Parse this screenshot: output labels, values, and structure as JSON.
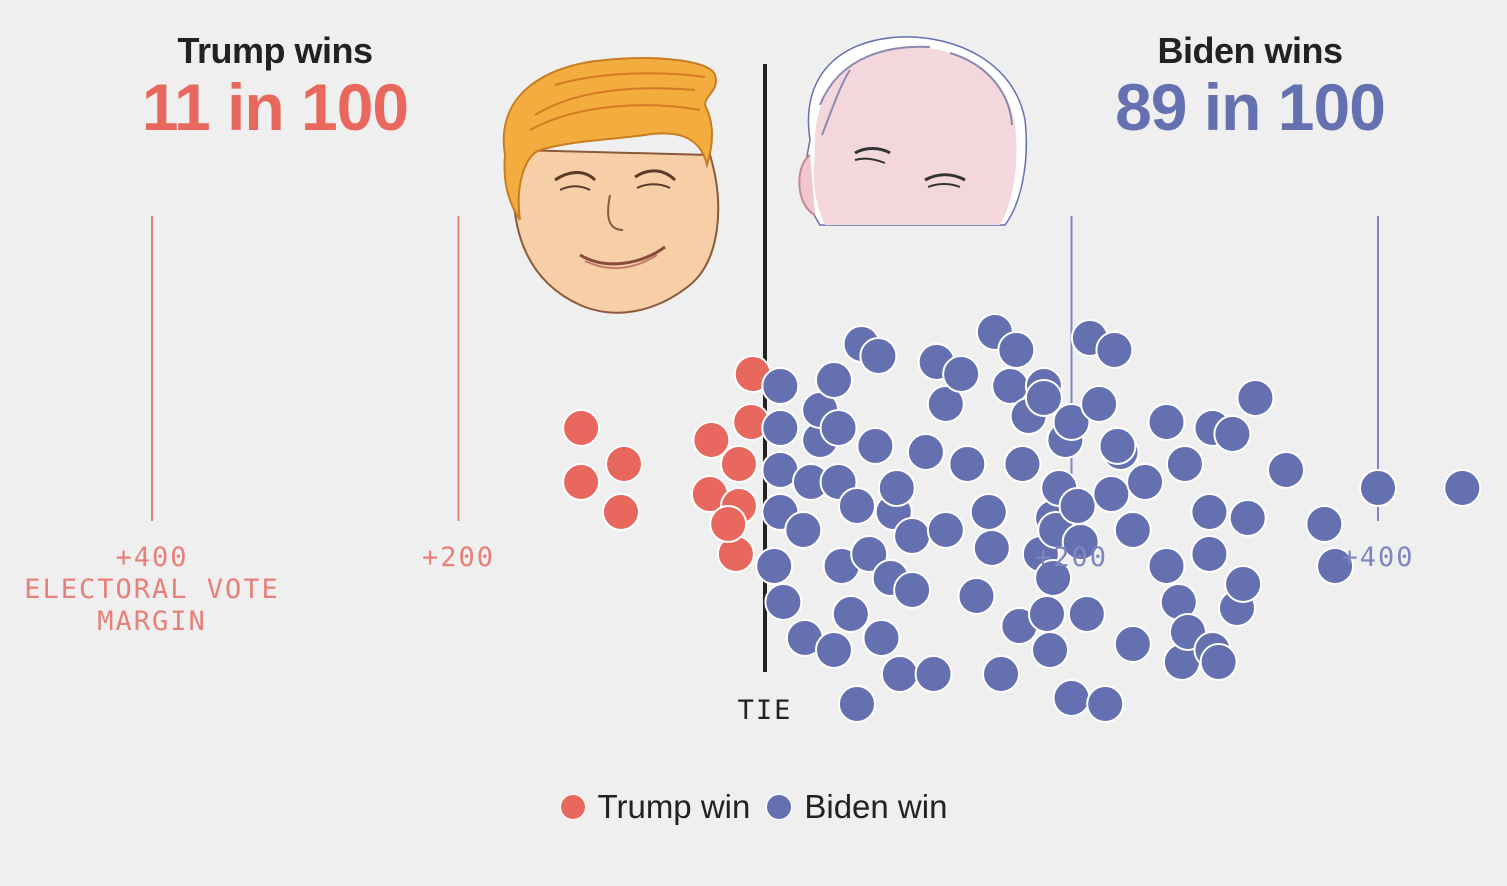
{
  "headers": {
    "trump": {
      "title": "Trump wins",
      "odds": "11 in 100"
    },
    "biden": {
      "title": "Biden wins",
      "odds": "89 in 100"
    }
  },
  "colors": {
    "trump": "#e8685e",
    "biden": "#6470b0",
    "tie_line": "#222222",
    "trump_line": "#e8807a",
    "biden_line": "#7f86bf"
  },
  "axis": {
    "tie_label": "TIE",
    "axis_title_lines": [
      "ELECTORAL VOTE",
      "MARGIN"
    ],
    "ticks": [
      {
        "value": -400,
        "label": "+400"
      },
      {
        "value": -200,
        "label": "+200"
      },
      {
        "value": 200,
        "label": "+200"
      },
      {
        "value": 400,
        "label": "+400"
      }
    ]
  },
  "illustrations": {
    "left": "trump-caricature-icon",
    "right": "biden-caricature-icon"
  },
  "legend": [
    {
      "label": "Trump win",
      "color": "#e8685e"
    },
    {
      "label": "Biden win",
      "color": "#6470b0"
    }
  ],
  "chart_data": {
    "type": "scatter",
    "xlabel": "ELECTORAL VOTE MARGIN",
    "xlim": [
      -400,
      460
    ],
    "series": [
      {
        "name": "Trump win",
        "x": [
          -120,
          -92,
          -120,
          -94,
          -35,
          -36,
          -8,
          -9,
          -17,
          -17,
          -19,
          -24
        ],
        "y": [
          7.5,
          6.9,
          6.6,
          6.1,
          7.3,
          6.4,
          8.4,
          7.6,
          6.9,
          6.2,
          5.4,
          5.9
        ]
      },
      {
        "name": "Biden win",
        "x": [
          10,
          10,
          10,
          10,
          6,
          12,
          26,
          36,
          36,
          25,
          30,
          45,
          50,
          48,
          48,
          45,
          56,
          63,
          68,
          60,
          72,
          74,
          76,
          82,
          84,
          86,
          88,
          96,
          96,
          105,
          110,
          112,
          118,
          118,
          128,
          132,
          138,
          146,
          148,
          150,
          160,
          154,
          164,
          166,
          172,
          168,
          180,
          188,
          182,
          186,
          184,
          188,
          190,
          192,
          196,
          200,
          200,
          204,
          206,
          210,
          212,
          218,
          226,
          232,
          228,
          240,
          240,
          248,
          262,
          262,
          274,
          270,
          272,
          276,
          290,
          290,
          292,
          296,
          292,
          305,
          308,
          312,
          315,
          320,
          340,
          365,
          372,
          400,
          455,
          60,
          230,
          182,
          222
        ],
        "y": [
          8.2,
          7.5,
          6.8,
          6.1,
          5.2,
          4.6,
          4.0,
          7.3,
          7.8,
          5.8,
          6.6,
          3.8,
          5.2,
          6.6,
          7.5,
          8.3,
          4.4,
          8.9,
          5.4,
          6.2,
          7.2,
          8.7,
          4.0,
          5.0,
          6.1,
          6.5,
          3.4,
          4.8,
          5.7,
          7.1,
          3.4,
          8.6,
          7.9,
          5.8,
          8.4,
          6.9,
          4.7,
          6.1,
          5.5,
          9.1,
          8.2,
          3.4,
          8.8,
          4.2,
          7.7,
          6.9,
          5.4,
          6.0,
          8.2,
          3.8,
          4.4,
          5.0,
          5.8,
          6.5,
          7.3,
          3.0,
          7.6,
          6.2,
          5.6,
          4.4,
          9.0,
          7.9,
          6.4,
          7.1,
          8.8,
          3.9,
          5.8,
          6.6,
          5.2,
          7.6,
          6.9,
          4.6,
          3.6,
          4.1,
          6.1,
          5.4,
          3.8,
          3.6,
          7.5,
          7.4,
          4.5,
          4.9,
          6.0,
          8.0,
          6.8,
          5.9,
          5.2,
          6.5,
          6.5,
          2.9,
          7.2,
          8.0,
          2.9
        ]
      }
    ]
  }
}
